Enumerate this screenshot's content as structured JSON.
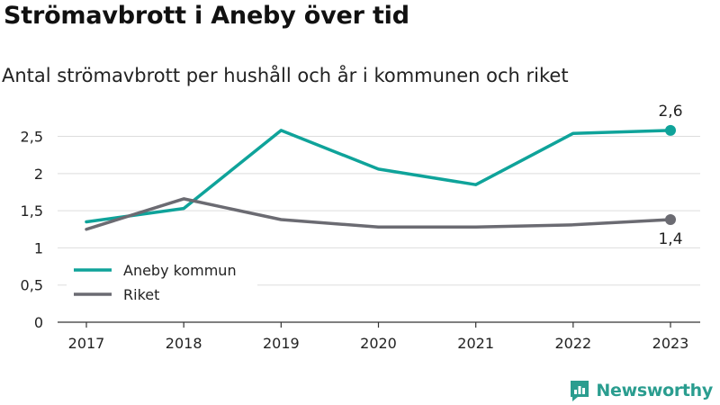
{
  "title": "Strömavbrott i Aneby över tid",
  "subtitle": "Antal strömavbrott per hushåll och år i kommunen och riket",
  "brand": {
    "name": "Newsworthy",
    "color": "#2a9d8f",
    "icon": "newsworthy-logo-icon"
  },
  "chart_data": {
    "type": "line",
    "x": [
      "2017",
      "2018",
      "2019",
      "2020",
      "2021",
      "2022",
      "2023"
    ],
    "yticks": [
      "0",
      "0,5",
      "1",
      "1,5",
      "2",
      "2,5"
    ],
    "ylim": [
      0,
      2.7
    ],
    "grid": true,
    "legend_position": "left-center",
    "series": [
      {
        "name": "Aneby kommun",
        "color": "#0fa39a",
        "values": [
          1.35,
          1.53,
          2.58,
          2.06,
          1.85,
          2.54,
          2.58
        ],
        "end_label": "2,6"
      },
      {
        "name": "Riket",
        "color": "#6b6b72",
        "values": [
          1.25,
          1.66,
          1.38,
          1.28,
          1.28,
          1.31,
          1.38
        ],
        "end_label": "1,4"
      }
    ]
  }
}
